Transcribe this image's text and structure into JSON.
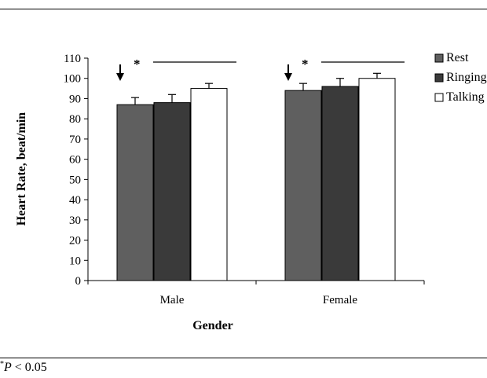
{
  "chart_data": {
    "type": "bar",
    "xlabel": "Gender",
    "ylabel": "Heart Rate, beat/min",
    "ylim": [
      0,
      110
    ],
    "ytick_step": 10,
    "categories": [
      "Male",
      "Female"
    ],
    "series": [
      {
        "name": "Rest",
        "values": [
          87,
          94
        ],
        "errors": [
          3.5,
          3.5
        ],
        "color": "#5f5f5f"
      },
      {
        "name": "Ringing",
        "values": [
          88,
          96
        ],
        "errors": [
          4,
          4
        ],
        "color": "#3a3a3a"
      },
      {
        "name": "Talking",
        "values": [
          95,
          100
        ],
        "errors": [
          2.5,
          2.5
        ],
        "color": "#ffffff"
      }
    ],
    "annotations": [
      {
        "category": "Male",
        "marker": "arrow",
        "label": "*",
        "significance_bar": true
      },
      {
        "category": "Female",
        "marker": "arrow",
        "label": "*",
        "significance_bar": true
      }
    ],
    "legend_position": "right",
    "grid": false
  },
  "footnote": {
    "symbol": "*",
    "variable": "P",
    "text": " < 0.05"
  }
}
